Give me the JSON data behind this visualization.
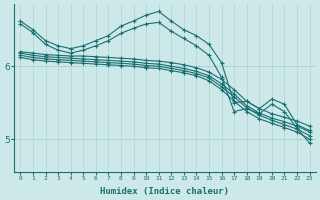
{
  "xlabel": "Humidex (Indice chaleur)",
  "xlim": [
    -0.5,
    23.5
  ],
  "ylim": [
    4.55,
    6.85
  ],
  "xticks": [
    0,
    1,
    2,
    3,
    4,
    5,
    6,
    7,
    8,
    9,
    10,
    11,
    12,
    13,
    14,
    15,
    16,
    17,
    18,
    19,
    20,
    21,
    22,
    23
  ],
  "yticks": [
    5,
    6
  ],
  "bg_color": "#cce8e8",
  "line_color": "#1a7070",
  "grid_color": "#b0d4d4",
  "lines": [
    [
      6.62,
      6.5,
      6.35,
      6.28,
      6.24,
      6.28,
      6.35,
      6.42,
      6.55,
      6.62,
      6.7,
      6.75,
      6.62,
      6.5,
      6.42,
      6.3,
      6.05,
      5.5,
      5.52,
      5.42,
      5.55,
      5.48,
      5.2,
      5.12
    ],
    [
      6.58,
      6.46,
      6.3,
      6.22,
      6.18,
      6.22,
      6.28,
      6.35,
      6.45,
      6.52,
      6.58,
      6.6,
      6.48,
      6.38,
      6.28,
      6.15,
      5.85,
      5.38,
      5.42,
      5.35,
      5.48,
      5.38,
      5.15,
      4.95
    ],
    [
      6.2,
      6.18,
      6.16,
      6.15,
      6.14,
      6.14,
      6.13,
      6.12,
      6.11,
      6.1,
      6.08,
      6.07,
      6.05,
      6.02,
      5.98,
      5.92,
      5.82,
      5.68,
      5.52,
      5.42,
      5.35,
      5.3,
      5.25,
      5.18
    ],
    [
      6.18,
      6.15,
      6.13,
      6.12,
      6.11,
      6.1,
      6.09,
      6.08,
      6.07,
      6.06,
      6.04,
      6.03,
      6.0,
      5.97,
      5.93,
      5.87,
      5.76,
      5.62,
      5.46,
      5.36,
      5.29,
      5.24,
      5.18,
      5.1
    ],
    [
      6.15,
      6.12,
      6.1,
      6.09,
      6.08,
      6.07,
      6.06,
      6.05,
      6.04,
      6.03,
      6.01,
      6.0,
      5.97,
      5.94,
      5.9,
      5.84,
      5.72,
      5.58,
      5.43,
      5.33,
      5.26,
      5.2,
      5.14,
      5.05
    ],
    [
      6.12,
      6.09,
      6.07,
      6.06,
      6.05,
      6.04,
      6.03,
      6.02,
      6.01,
      6.0,
      5.98,
      5.97,
      5.94,
      5.91,
      5.87,
      5.8,
      5.68,
      5.52,
      5.38,
      5.28,
      5.22,
      5.16,
      5.1,
      5.0
    ]
  ]
}
